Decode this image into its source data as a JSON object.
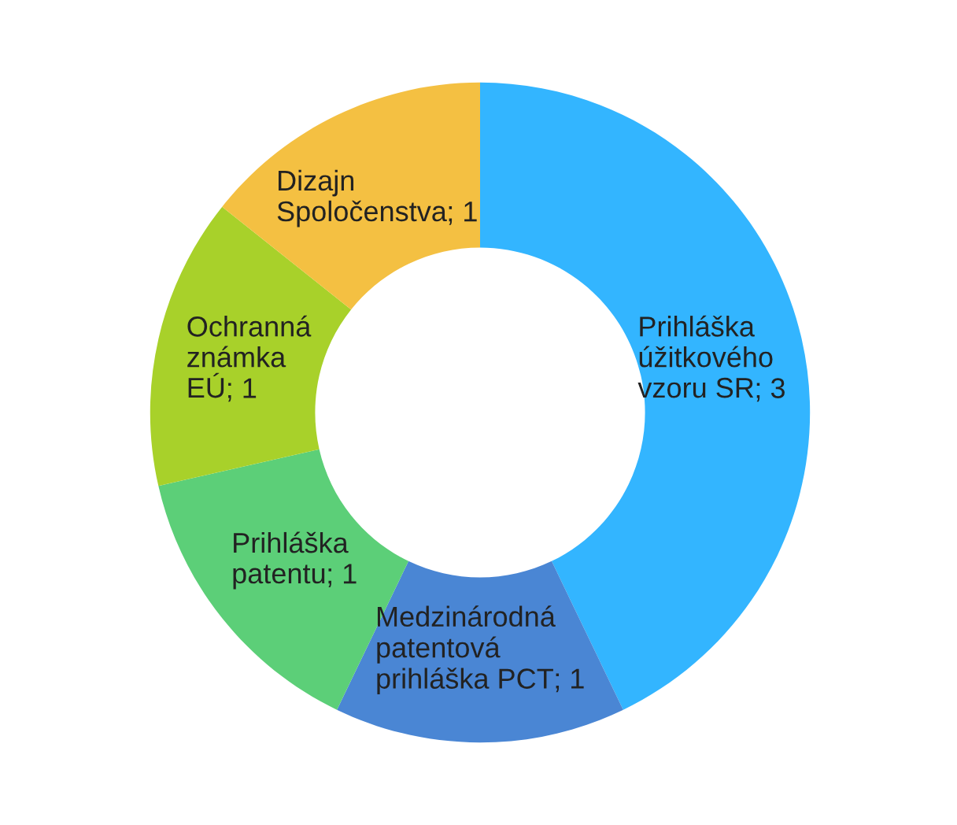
{
  "chart_data": {
    "type": "donut",
    "categories": [
      "Prihláška\núžitkového\nvzoru SR",
      "Medzinárodná\npatentová\nprihláška PCT",
      "Prihláška\npatentu",
      "Ochranná\nznámka\nEÚ",
      "Dizajn\nSpoločenstva"
    ],
    "values": [
      3,
      1,
      1,
      1,
      1
    ],
    "value_labels": [
      "; 3",
      "; 1",
      "; 1",
      "; 1",
      "; 1"
    ],
    "colors": [
      "#33b5ff",
      "#4a86d4",
      "#5ccf78",
      "#a8d12a",
      "#f4c042"
    ]
  }
}
